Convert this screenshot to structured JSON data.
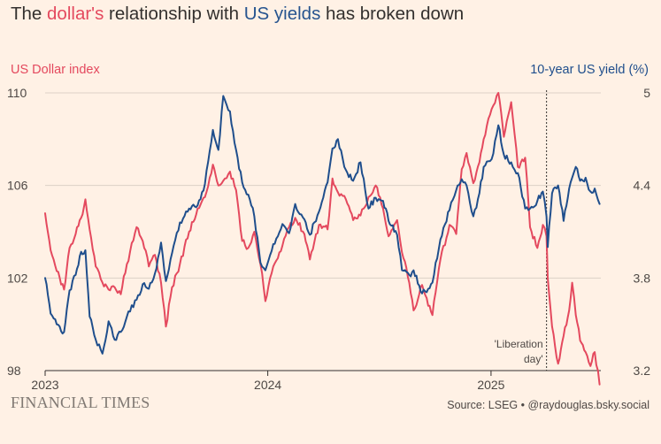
{
  "header": {
    "title_part1": "The ",
    "title_dollar": "dollar's",
    "title_part2": " relationship with ",
    "title_yields": "US yields",
    "title_part3": " has broken down"
  },
  "footer": {
    "logo": "FINANCIAL TIMES",
    "source": "Source: LSEG • @raydouglas.bsky.social"
  },
  "colors": {
    "background": "#fff1e5",
    "dollar": "#e4495e",
    "yield": "#1f4e8c",
    "grid": "#dcd1c6",
    "axis": "#33302e"
  },
  "chart_data": {
    "type": "line",
    "title": "The dollar's relationship with US yields has broken down",
    "grid": true,
    "x_axis": {
      "type": "date",
      "range": [
        "2023-01-01",
        "2025-06-30"
      ],
      "tick_labels": [
        "2023",
        "2024",
        "2025"
      ]
    },
    "left_axis": {
      "label": "US Dollar index",
      "range": [
        98,
        110
      ],
      "ticks": [
        98,
        102,
        106,
        110
      ]
    },
    "right_axis": {
      "label": "10-year US yield (%)",
      "range": [
        3.2,
        5.0
      ],
      "ticks": [
        "3.2",
        "3.8",
        "4.4",
        "5"
      ]
    },
    "annotation": {
      "date": "2025-04-02",
      "line1": "'Liberation",
      "line2": "day'"
    },
    "series": [
      {
        "name": "US Dollar index",
        "axis": "left",
        "color": "#e4495e",
        "points": [
          [
            "2023-01-01",
            104.8
          ],
          [
            "2023-01-10",
            103.2
          ],
          [
            "2023-01-20",
            102.3
          ],
          [
            "2023-02-01",
            101.5
          ],
          [
            "2023-02-10",
            103.3
          ],
          [
            "2023-02-20",
            103.9
          ],
          [
            "2023-03-01",
            104.6
          ],
          [
            "2023-03-08",
            105.4
          ],
          [
            "2023-03-15",
            104.1
          ],
          [
            "2023-03-25",
            102.5
          ],
          [
            "2023-04-05",
            101.8
          ],
          [
            "2023-04-15",
            101.5
          ],
          [
            "2023-04-25",
            101.6
          ],
          [
            "2023-05-05",
            101.3
          ],
          [
            "2023-05-15",
            102.6
          ],
          [
            "2023-05-31",
            104.2
          ],
          [
            "2023-06-10",
            103.6
          ],
          [
            "2023-06-20",
            102.5
          ],
          [
            "2023-06-30",
            103.0
          ],
          [
            "2023-07-10",
            101.8
          ],
          [
            "2023-07-18",
            99.9
          ],
          [
            "2023-07-28",
            101.6
          ],
          [
            "2023-08-10",
            102.6
          ],
          [
            "2023-08-25",
            104.0
          ],
          [
            "2023-09-08",
            105.0
          ],
          [
            "2023-09-20",
            105.5
          ],
          [
            "2023-10-03",
            106.9
          ],
          [
            "2023-10-12",
            106.0
          ],
          [
            "2023-10-20",
            106.2
          ],
          [
            "2023-10-31",
            106.6
          ],
          [
            "2023-11-10",
            105.8
          ],
          [
            "2023-11-20",
            103.6
          ],
          [
            "2023-11-30",
            103.3
          ],
          [
            "2023-12-10",
            104.0
          ],
          [
            "2023-12-20",
            102.6
          ],
          [
            "2023-12-28",
            101.0
          ],
          [
            "2024-01-10",
            102.5
          ],
          [
            "2024-01-25",
            103.4
          ],
          [
            "2024-02-05",
            104.2
          ],
          [
            "2024-02-15",
            104.6
          ],
          [
            "2024-03-01",
            103.9
          ],
          [
            "2024-03-10",
            102.8
          ],
          [
            "2024-03-25",
            104.3
          ],
          [
            "2024-04-08",
            104.1
          ],
          [
            "2024-04-16",
            106.3
          ],
          [
            "2024-04-25",
            105.7
          ],
          [
            "2024-05-08",
            105.4
          ],
          [
            "2024-05-20",
            104.5
          ],
          [
            "2024-06-01",
            104.7
          ],
          [
            "2024-06-14",
            105.5
          ],
          [
            "2024-06-26",
            106.0
          ],
          [
            "2024-07-08",
            105.0
          ],
          [
            "2024-07-17",
            103.8
          ],
          [
            "2024-07-31",
            104.5
          ],
          [
            "2024-08-08",
            103.1
          ],
          [
            "2024-08-20",
            101.8
          ],
          [
            "2024-08-27",
            100.6
          ],
          [
            "2024-09-10",
            101.7
          ],
          [
            "2024-09-20",
            100.8
          ],
          [
            "2024-09-27",
            100.4
          ],
          [
            "2024-10-10",
            102.8
          ],
          [
            "2024-10-25",
            104.3
          ],
          [
            "2024-11-05",
            103.9
          ],
          [
            "2024-11-14",
            106.7
          ],
          [
            "2024-11-22",
            107.4
          ],
          [
            "2024-12-03",
            106.1
          ],
          [
            "2024-12-13",
            107.0
          ],
          [
            "2024-12-20",
            108.0
          ],
          [
            "2025-01-02",
            109.3
          ],
          [
            "2025-01-13",
            110.0
          ],
          [
            "2025-01-22",
            108.1
          ],
          [
            "2025-02-03",
            109.6
          ],
          [
            "2025-02-14",
            106.8
          ],
          [
            "2025-02-26",
            107.2
          ],
          [
            "2025-03-06",
            104.2
          ],
          [
            "2025-03-18",
            103.3
          ],
          [
            "2025-03-27",
            104.3
          ],
          [
            "2025-04-02",
            103.8
          ],
          [
            "2025-04-04",
            102.0
          ],
          [
            "2025-04-11",
            99.9
          ],
          [
            "2025-04-21",
            98.3
          ],
          [
            "2025-04-30",
            99.5
          ],
          [
            "2025-05-09",
            100.6
          ],
          [
            "2025-05-14",
            101.8
          ],
          [
            "2025-05-20",
            100.4
          ],
          [
            "2025-05-27",
            99.3
          ],
          [
            "2025-06-05",
            98.8
          ],
          [
            "2025-06-13",
            98.2
          ],
          [
            "2025-06-20",
            98.8
          ],
          [
            "2025-06-28",
            97.4
          ]
        ]
      },
      {
        "name": "10-year US yield (%)",
        "axis": "right",
        "color": "#1f4e8c",
        "points": [
          [
            "2023-01-01",
            3.8
          ],
          [
            "2023-01-10",
            3.57
          ],
          [
            "2023-01-20",
            3.5
          ],
          [
            "2023-02-01",
            3.45
          ],
          [
            "2023-02-10",
            3.72
          ],
          [
            "2023-02-20",
            3.82
          ],
          [
            "2023-03-01",
            3.97
          ],
          [
            "2023-03-08",
            3.98
          ],
          [
            "2023-03-15",
            3.55
          ],
          [
            "2023-03-25",
            3.4
          ],
          [
            "2023-04-05",
            3.31
          ],
          [
            "2023-04-15",
            3.52
          ],
          [
            "2023-04-25",
            3.4
          ],
          [
            "2023-05-05",
            3.45
          ],
          [
            "2023-05-15",
            3.55
          ],
          [
            "2023-05-31",
            3.66
          ],
          [
            "2023-06-10",
            3.76
          ],
          [
            "2023-06-20",
            3.73
          ],
          [
            "2023-06-30",
            3.83
          ],
          [
            "2023-07-10",
            4.03
          ],
          [
            "2023-07-18",
            3.78
          ],
          [
            "2023-07-28",
            3.96
          ],
          [
            "2023-08-10",
            4.16
          ],
          [
            "2023-08-25",
            4.25
          ],
          [
            "2023-09-08",
            4.27
          ],
          [
            "2023-09-20",
            4.41
          ],
          [
            "2023-10-03",
            4.76
          ],
          [
            "2023-10-12",
            4.63
          ],
          [
            "2023-10-20",
            4.98
          ],
          [
            "2023-10-31",
            4.88
          ],
          [
            "2023-11-10",
            4.63
          ],
          [
            "2023-11-20",
            4.42
          ],
          [
            "2023-11-30",
            4.34
          ],
          [
            "2023-12-10",
            4.2
          ],
          [
            "2023-12-20",
            3.9
          ],
          [
            "2023-12-28",
            3.85
          ],
          [
            "2024-01-10",
            4.02
          ],
          [
            "2024-01-25",
            4.15
          ],
          [
            "2024-02-05",
            4.09
          ],
          [
            "2024-02-15",
            4.28
          ],
          [
            "2024-03-01",
            4.18
          ],
          [
            "2024-03-10",
            4.08
          ],
          [
            "2024-03-25",
            4.23
          ],
          [
            "2024-04-08",
            4.42
          ],
          [
            "2024-04-16",
            4.64
          ],
          [
            "2024-04-25",
            4.7
          ],
          [
            "2024-05-08",
            4.5
          ],
          [
            "2024-05-20",
            4.43
          ],
          [
            "2024-06-01",
            4.55
          ],
          [
            "2024-06-14",
            4.25
          ],
          [
            "2024-06-26",
            4.32
          ],
          [
            "2024-07-08",
            4.3
          ],
          [
            "2024-07-17",
            4.17
          ],
          [
            "2024-07-31",
            4.08
          ],
          [
            "2024-08-08",
            3.85
          ],
          [
            "2024-08-20",
            3.82
          ],
          [
            "2024-08-27",
            3.85
          ],
          [
            "2024-09-10",
            3.7
          ],
          [
            "2024-09-20",
            3.73
          ],
          [
            "2024-09-27",
            3.77
          ],
          [
            "2024-10-10",
            4.05
          ],
          [
            "2024-10-25",
            4.24
          ],
          [
            "2024-11-05",
            4.37
          ],
          [
            "2024-11-14",
            4.44
          ],
          [
            "2024-11-22",
            4.4
          ],
          [
            "2024-12-03",
            4.2
          ],
          [
            "2024-12-13",
            4.35
          ],
          [
            "2024-12-20",
            4.52
          ],
          [
            "2025-01-02",
            4.57
          ],
          [
            "2025-01-13",
            4.79
          ],
          [
            "2025-01-22",
            4.6
          ],
          [
            "2025-02-03",
            4.55
          ],
          [
            "2025-02-14",
            4.48
          ],
          [
            "2025-02-26",
            4.25
          ],
          [
            "2025-03-06",
            4.25
          ],
          [
            "2025-03-18",
            4.3
          ],
          [
            "2025-03-27",
            4.36
          ],
          [
            "2025-04-02",
            4.2
          ],
          [
            "2025-04-04",
            4.0
          ],
          [
            "2025-04-11",
            4.35
          ],
          [
            "2025-04-21",
            4.4
          ],
          [
            "2025-04-30",
            4.17
          ],
          [
            "2025-05-09",
            4.38
          ],
          [
            "2025-05-14",
            4.45
          ],
          [
            "2025-05-20",
            4.52
          ],
          [
            "2025-05-27",
            4.43
          ],
          [
            "2025-06-05",
            4.45
          ],
          [
            "2025-06-13",
            4.36
          ],
          [
            "2025-06-20",
            4.38
          ],
          [
            "2025-06-28",
            4.28
          ]
        ]
      }
    ]
  }
}
